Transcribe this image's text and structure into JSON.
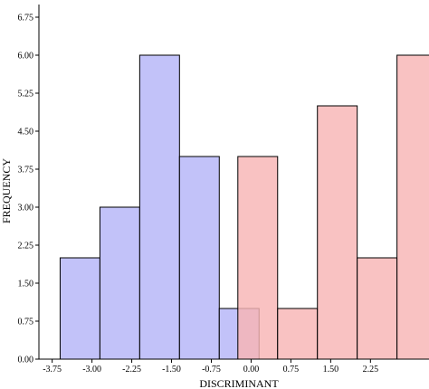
{
  "chart_data": {
    "type": "bar",
    "xlabel": "DISCRIMINANT",
    "ylabel": "FREQUENCY",
    "xlim": [
      -4.0,
      3.2
    ],
    "ylim": [
      0,
      7.0
    ],
    "x_ticks": [
      -3.75,
      -3.0,
      -2.25,
      -1.5,
      -0.75,
      0.0,
      0.75,
      1.5,
      2.25
    ],
    "x_tick_labels": [
      "-3.75",
      "-3.00",
      "-2.25",
      "-1.50",
      "-0.75",
      "0.00",
      "0.75",
      "1.50",
      "2.25"
    ],
    "y_ticks": [
      0,
      0.75,
      1.5,
      2.25,
      3.0,
      3.75,
      4.5,
      5.25,
      6.0,
      6.75
    ],
    "y_tick_labels": [
      "0.00",
      "0.75",
      "1.50",
      "2.25",
      "3.00",
      "3.75",
      "4.50",
      "5.25",
      "6.00",
      "6.75"
    ],
    "grid": false,
    "series": [
      {
        "color": "#b4b4f8",
        "bins": [
          {
            "x0": -3.6,
            "x1": -2.85,
            "value": 2
          },
          {
            "x0": -2.85,
            "x1": -2.1,
            "value": 3
          },
          {
            "x0": -2.1,
            "x1": -1.35,
            "value": 6
          },
          {
            "x0": -1.35,
            "x1": -0.6,
            "value": 4
          },
          {
            "x0": -0.6,
            "x1": 0.15,
            "value": 1
          }
        ]
      },
      {
        "color": "#f8b4b4",
        "bins": [
          {
            "x0": -0.25,
            "x1": 0.5,
            "value": 4
          },
          {
            "x0": 0.5,
            "x1": 1.25,
            "value": 1
          },
          {
            "x0": 1.25,
            "x1": 2.0,
            "value": 5
          },
          {
            "x0": 2.0,
            "x1": 2.75,
            "value": 2
          },
          {
            "x0": 2.75,
            "x1": 3.5,
            "value": 6
          }
        ]
      }
    ]
  }
}
